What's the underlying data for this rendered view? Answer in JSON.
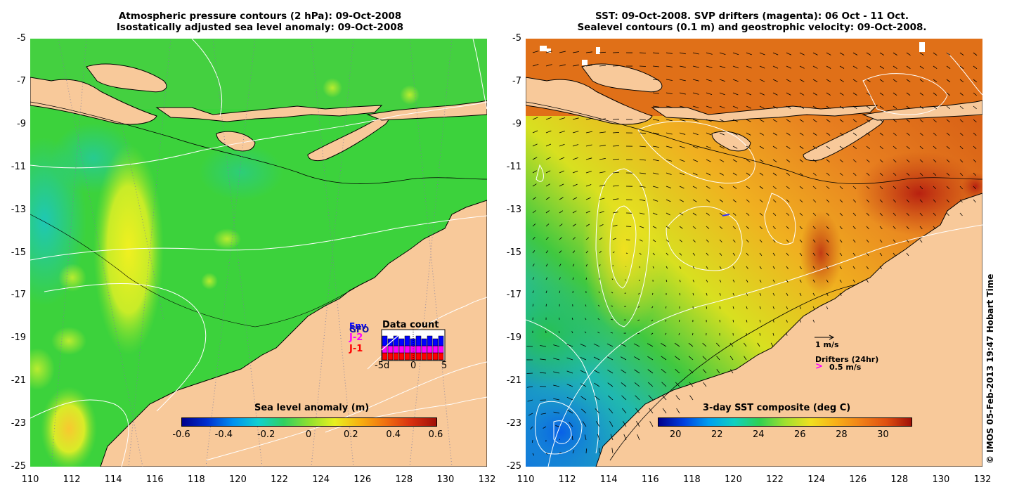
{
  "left_panel": {
    "title_line1": "Atmospheric pressure contours (2 hPa): 09-Oct-2008",
    "title_line2": "Isostatically adjusted sea level anomaly: 09-Oct-2008",
    "colorbar_title": "Sea level anomaly (m)",
    "colorbar_ticks": [
      "-0.6",
      "-0.4",
      "-0.2",
      "0",
      "0.2",
      "0.4",
      "0.6"
    ],
    "inset": {
      "title": "Data count",
      "legend": [
        "Env",
        "GFO",
        "J-2",
        "J-1"
      ],
      "legend_colors": [
        "#0000ff",
        "#1a1aa0",
        "#ff00ff",
        "#ff0000"
      ],
      "x_ticks": [
        "-5d",
        "0",
        "5"
      ]
    }
  },
  "right_panel": {
    "title_line1": "SST: 09-Oct-2008. SVP drifters (magenta): 06 Oct - 11 Oct.",
    "title_line2": "Sealevel contours (0.1 m) and geostrophic velocity: 09-Oct-2008.",
    "colorbar_title": "3-day SST composite (deg C)",
    "colorbar_ticks": [
      "20",
      "22",
      "24",
      "26",
      "28",
      "30"
    ],
    "velocity_scale_label": "1 m/s",
    "drifters_label": "Drifters (24hr)",
    "drifters_speed_label": "0.5 m/s"
  },
  "axes": {
    "lat_labels": [
      "-5",
      "-7",
      "-9",
      "-11",
      "-13",
      "-15",
      "-17",
      "-19",
      "-21",
      "-23",
      "-25"
    ],
    "lon_labels": [
      "110",
      "112",
      "114",
      "116",
      "118",
      "120",
      "122",
      "124",
      "126",
      "128",
      "130",
      "132"
    ]
  },
  "credit": "© IMOS 05-Feb-2013 19:47 Hobart Time",
  "colors": {
    "land": "#f8c99a",
    "slanom_ocean": "#3cd23c",
    "sst_ocean": "#e8781c"
  }
}
